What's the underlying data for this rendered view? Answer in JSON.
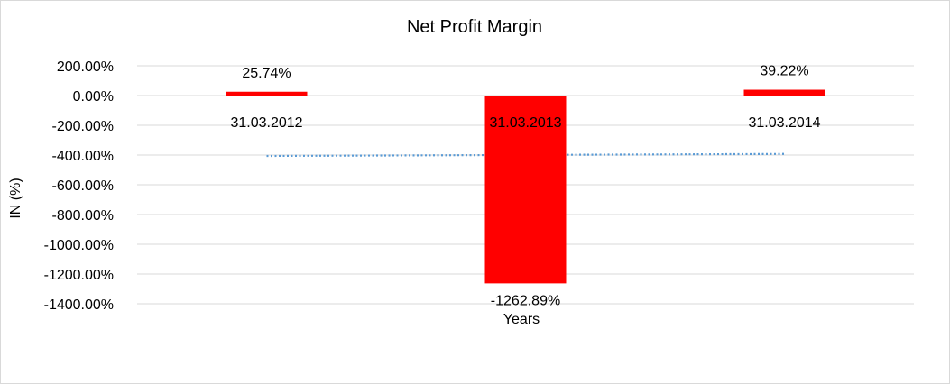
{
  "chart_data": {
    "type": "bar",
    "title": "Net Profit Margin",
    "ylabel": "IN (%)",
    "xlabel": "Years",
    "categories": [
      "31.03.2012",
      "31.03.2013",
      "31.03.2014"
    ],
    "values": [
      25.74,
      -1262.89,
      39.22
    ],
    "data_labels": [
      "25.74%",
      "-1262.89%",
      "39.22%"
    ],
    "ylim": [
      -1400,
      200
    ],
    "yticks": [
      200,
      0,
      -200,
      -400,
      -600,
      -800,
      -1000,
      -1200,
      -1400
    ],
    "ytick_labels": [
      "200.00%",
      "0.00%",
      "-200.00%",
      "-400.00%",
      "-600.00%",
      "-800.00%",
      "-1000.00%",
      "-1200.00%",
      "-1400.00%"
    ],
    "trendline": {
      "type": "linear",
      "style": "dotted"
    },
    "grid": true,
    "legend": "none",
    "colors": {
      "bar": "#ff0000",
      "grid": "#d9d9d9",
      "trendline": "#5b9bd5"
    }
  }
}
